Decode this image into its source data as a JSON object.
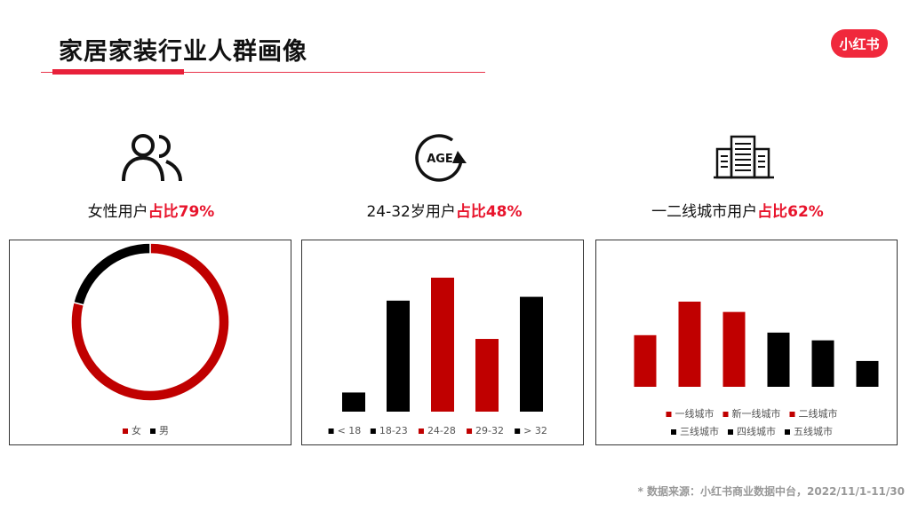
{
  "header": {
    "title": "家居家装行业人群画像",
    "logo_text": "小红书"
  },
  "stats": [
    {
      "label": "女性用户",
      "highlight": "占比79%",
      "icon": "people-icon"
    },
    {
      "label": "24-32岁用户",
      "highlight": "占比48%",
      "icon": "age-icon"
    },
    {
      "label": "一二线城市用户",
      "highlight": "占比62%",
      "icon": "building-icon"
    }
  ],
  "colors": {
    "red": "#c00000",
    "black": "#000000",
    "accent": "#e8142c"
  },
  "chart_data": [
    {
      "type": "pie",
      "donut": true,
      "categories": [
        "女",
        "男"
      ],
      "values": [
        79,
        21
      ],
      "colors": [
        "#c00000",
        "#000000"
      ],
      "legend": "bottom"
    },
    {
      "type": "bar",
      "categories": [
        "< 18",
        "18-23",
        "24-28",
        "29-32",
        "> 32"
      ],
      "values": [
        5,
        29,
        35,
        19,
        30
      ],
      "colors": [
        "#000000",
        "#000000",
        "#c00000",
        "#c00000",
        "#000000"
      ],
      "legend": "bottom"
    },
    {
      "type": "bar",
      "categories": [
        "一线城市",
        "新一线城市",
        "二线城市",
        "三线城市",
        "四线城市",
        "五线城市"
      ],
      "values": [
        20,
        33,
        29,
        21,
        18,
        10
      ],
      "colors": [
        "#c00000",
        "#c00000",
        "#c00000",
        "#000000",
        "#000000",
        "#000000"
      ],
      "legend": "bottom"
    }
  ],
  "footer": {
    "source": "* 数据来源：小红书商业数据中台，2022/11/1-11/30"
  }
}
